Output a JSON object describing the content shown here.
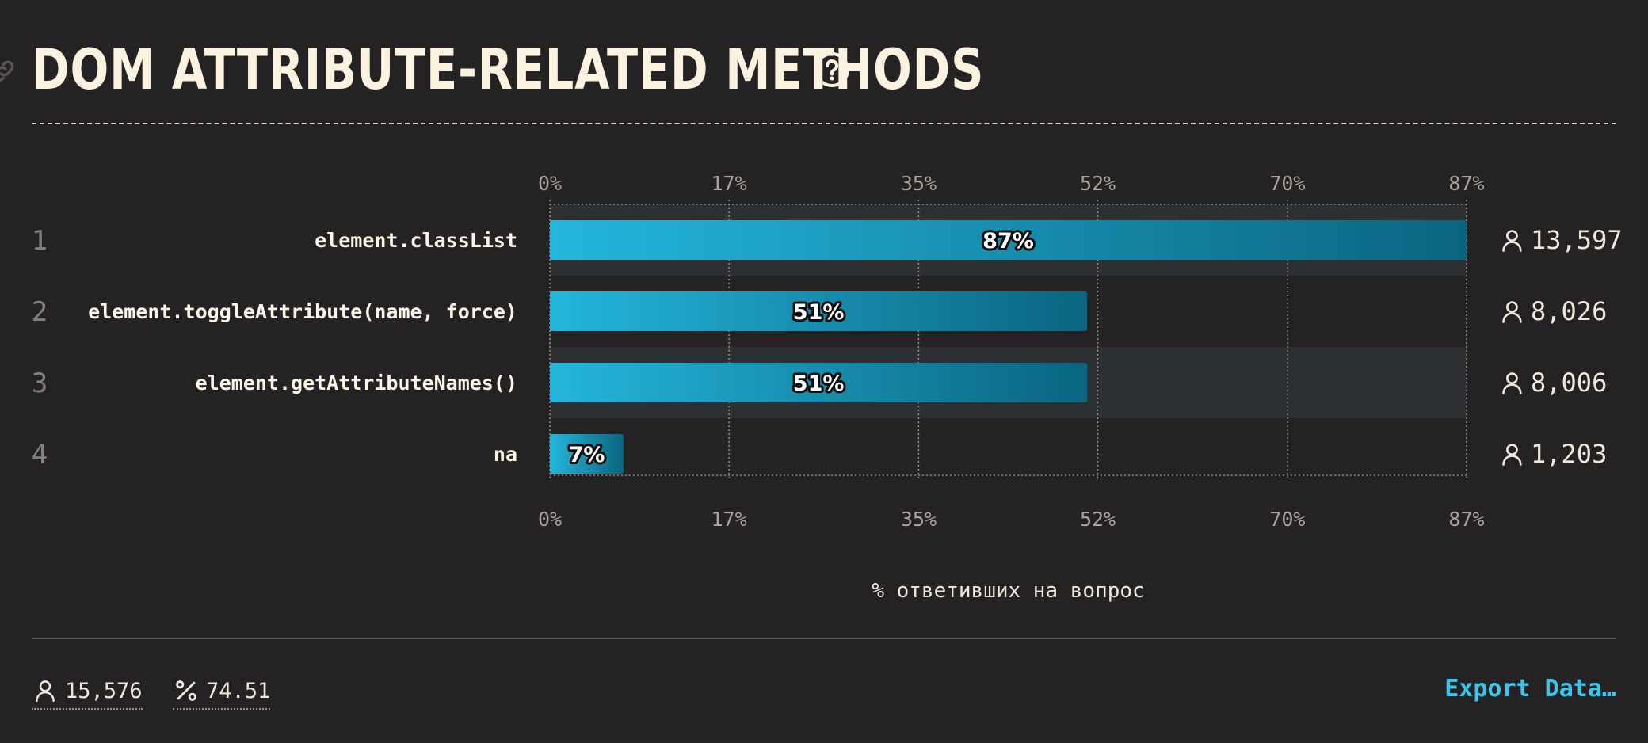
{
  "title": "DOM ATTRIBUTE-RELATED METHODS",
  "footer": {
    "respondents": "15,576",
    "percent": "74.51",
    "export_label": "Export Data…"
  },
  "colors": {
    "bar_start": "#24b6dc",
    "bar_end": "#0a6580",
    "accent": "#3cc6ec",
    "background": "#252224"
  },
  "icons": {
    "title": "link-icon",
    "help": "help-icon",
    "count": "user-icon",
    "percent": "percent-icon"
  },
  "chart_data": {
    "type": "bar",
    "orientation": "horizontal",
    "categories": [
      "element.classList",
      "element.toggleAttribute(name, force)",
      "element.getAttributeNames()",
      "na"
    ],
    "ranks": [
      "1",
      "2",
      "3",
      "4"
    ],
    "values": [
      87,
      51,
      51,
      7
    ],
    "value_labels": [
      "87%",
      "51%",
      "51%",
      "7%"
    ],
    "counts": [
      "13,597",
      "8,026",
      "8,006",
      "1,203"
    ],
    "tick_values": [
      0,
      17,
      35,
      52,
      70,
      87
    ],
    "tick_labels": [
      "0%",
      "17%",
      "35%",
      "52%",
      "70%",
      "87%"
    ],
    "xlim": [
      0,
      87
    ],
    "xlabel": "% ответивших на вопрос",
    "grid": true
  }
}
